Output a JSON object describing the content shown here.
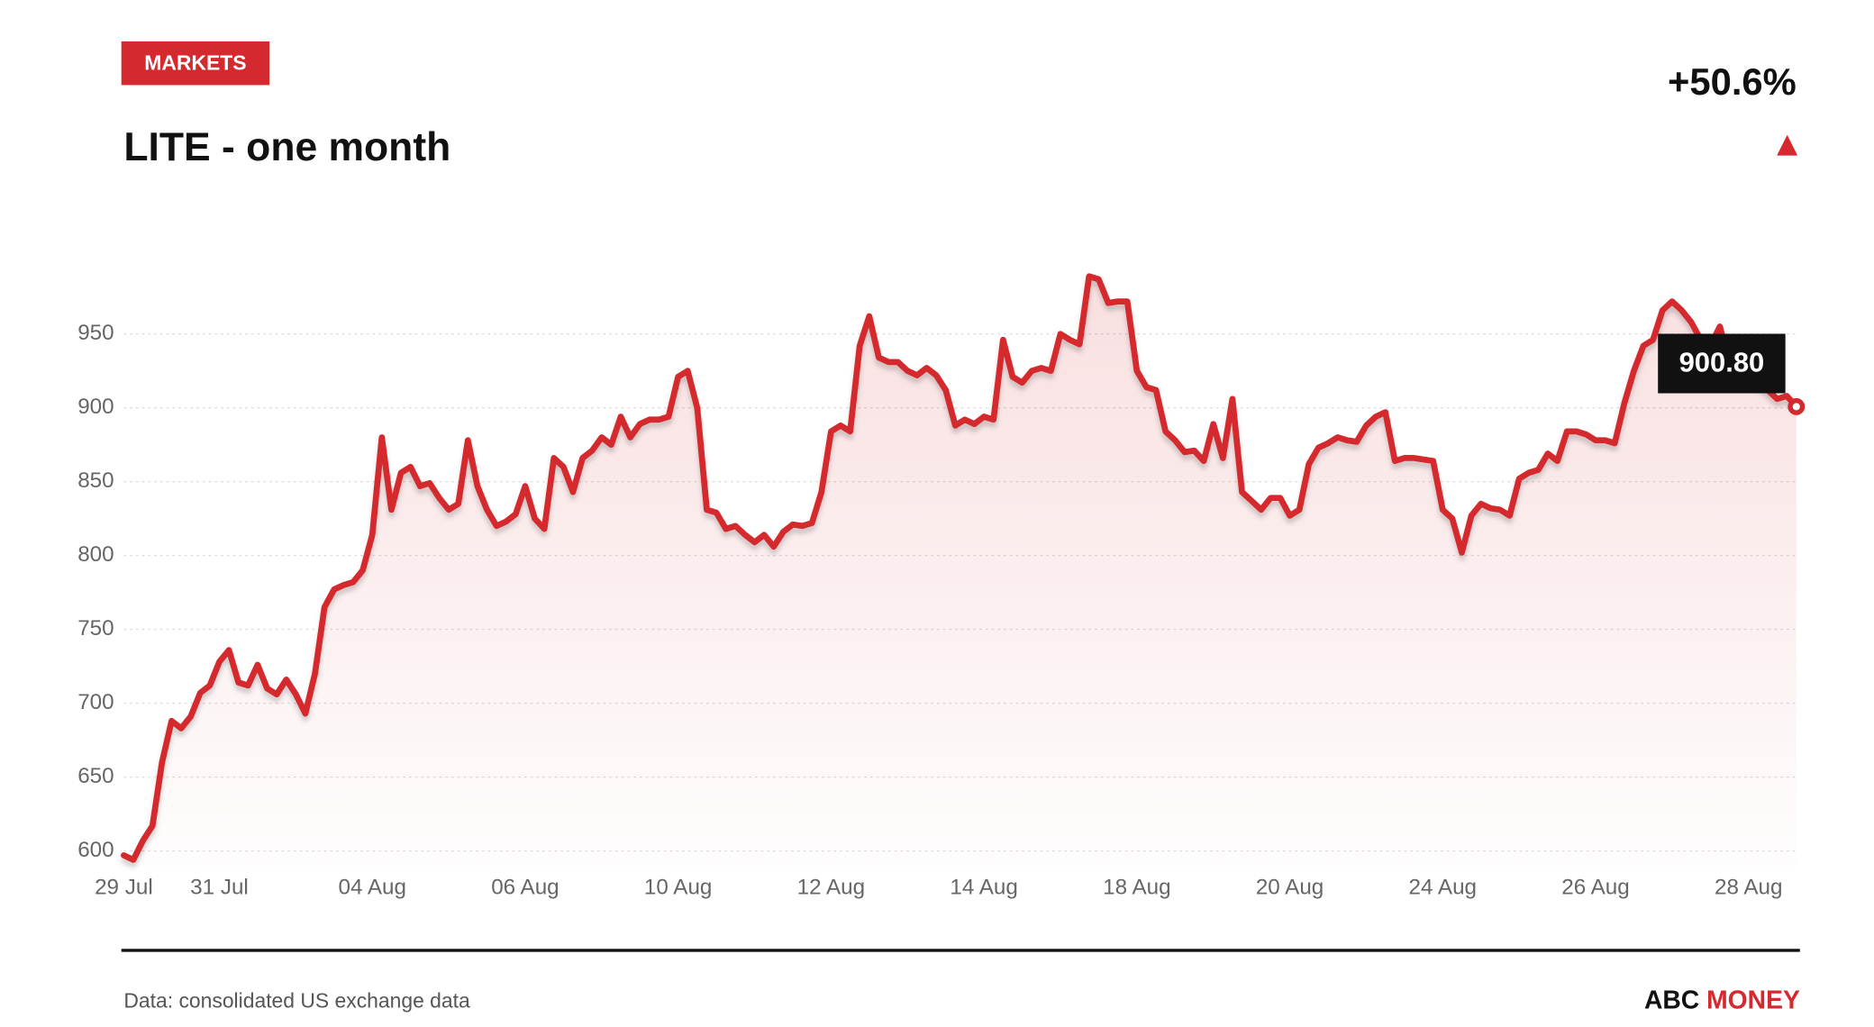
{
  "header": {
    "tag": "MARKETS",
    "change": "+50.6%"
  },
  "footer": {
    "source": "Data: consolidated US exchange data",
    "brand_left": "ABC",
    "brand_right": "MONEY"
  },
  "chart_data": {
    "type": "line",
    "title": "LITE - one month",
    "color": "#d42a2f",
    "annotation": "900.80",
    "grid": true,
    "ylim": [
      590,
      1000
    ],
    "yticks": [
      600,
      650,
      700,
      750,
      800,
      850,
      900,
      950
    ],
    "categories": [
      "29 Jul",
      null,
      null,
      null,
      null,
      null,
      null,
      null,
      null,
      null,
      "31 Jul",
      null,
      null,
      null,
      null,
      null,
      null,
      null,
      null,
      null,
      null,
      null,
      null,
      null,
      null,
      null,
      "04 Aug",
      null,
      null,
      null,
      null,
      null,
      null,
      null,
      null,
      null,
      null,
      null,
      null,
      null,
      null,
      null,
      "06 Aug",
      null,
      null,
      null,
      null,
      null,
      null,
      null,
      null,
      null,
      null,
      null,
      null,
      null,
      null,
      null,
      "10 Aug",
      null,
      null,
      null,
      null,
      null,
      null,
      null,
      null,
      null,
      null,
      null,
      null,
      null,
      null,
      null,
      "12 Aug",
      null,
      null,
      null,
      null,
      null,
      null,
      null,
      null,
      null,
      null,
      null,
      null,
      null,
      null,
      null,
      "14 Aug",
      null,
      null,
      null,
      null,
      null,
      null,
      null,
      null,
      null,
      null,
      null,
      null,
      null,
      null,
      null,
      "18 Aug",
      null,
      null,
      null,
      null,
      null,
      null,
      null,
      null,
      null,
      null,
      null,
      null,
      null,
      null,
      null,
      "20 Aug",
      null,
      null,
      null,
      null,
      null,
      null,
      null,
      null,
      null,
      null,
      null,
      null,
      null,
      null,
      null,
      "24 Aug",
      null,
      null,
      null,
      null,
      null,
      null,
      null,
      null,
      null,
      null,
      null,
      null,
      null,
      null,
      null,
      "26 Aug",
      null,
      null,
      null,
      null,
      null,
      null,
      null,
      null,
      null,
      null,
      null,
      null,
      null,
      null,
      null,
      "28 Aug",
      null,
      null,
      null,
      null,
      null
    ],
    "values": [
      597,
      594,
      607,
      617,
      660,
      688,
      683,
      691,
      707,
      712,
      728,
      736,
      714,
      712,
      726,
      710,
      706,
      716,
      706,
      693,
      720,
      765,
      777,
      780,
      782,
      790,
      814,
      880,
      831,
      856,
      860,
      847,
      849,
      839,
      831,
      835,
      878,
      847,
      831,
      820,
      823,
      828,
      847,
      825,
      818,
      866,
      860,
      843,
      866,
      871,
      880,
      875,
      894,
      880,
      889,
      892,
      892,
      894,
      921,
      925,
      900,
      831,
      829,
      818,
      820,
      814,
      809,
      814,
      806,
      816,
      821,
      820,
      822,
      843,
      884,
      888,
      884,
      942,
      962,
      934,
      931,
      931,
      925,
      922,
      927,
      922,
      912,
      888,
      892,
      889,
      894,
      892,
      946,
      921,
      917,
      925,
      927,
      925,
      950,
      946,
      943,
      989,
      987,
      971,
      972,
      972,
      925,
      914,
      912,
      884,
      878,
      870,
      871,
      864,
      889,
      866,
      906,
      843,
      837,
      831,
      839,
      839,
      827,
      831,
      862,
      873,
      876,
      880,
      878,
      877,
      888,
      894,
      897,
      864,
      866,
      866,
      865,
      864,
      831,
      825,
      802,
      827,
      835,
      832,
      831,
      827,
      852,
      856,
      858,
      869,
      864,
      884,
      884,
      882,
      878,
      878,
      876,
      903,
      925,
      942,
      946,
      966,
      972,
      966,
      958,
      946,
      942,
      955,
      930,
      925,
      921,
      917,
      912,
      906,
      908,
      900.8
    ]
  }
}
